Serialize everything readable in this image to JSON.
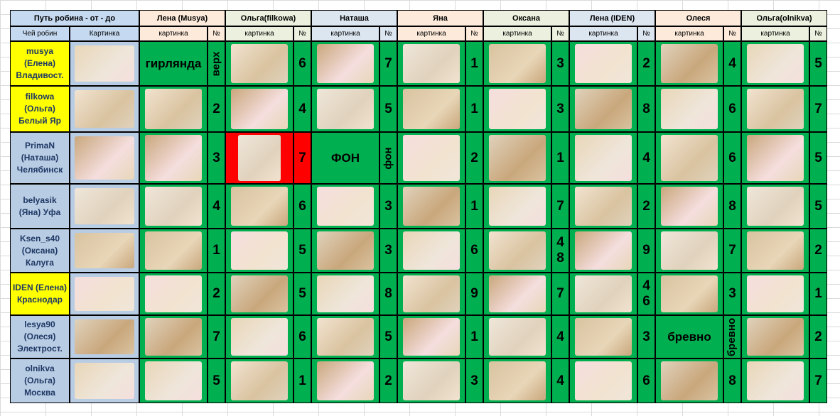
{
  "header": {
    "title": "Путь робина - от - до",
    "owner": "Чей робин",
    "picture": "Картинка"
  },
  "groups": [
    {
      "name": "Лена (Musya)",
      "picture": "картинка",
      "no": "№",
      "color": "#fdeada"
    },
    {
      "name": "Ольга(filkowa)",
      "picture": "картинка",
      "no": "№",
      "color": "#ebf1de"
    },
    {
      "name": "Наташа",
      "picture": "картинка",
      "no": "№",
      "color": "#dce6f1"
    },
    {
      "name": "Яна",
      "picture": "картинка",
      "no": "№",
      "color": "#fdeada"
    },
    {
      "name": "Оксана",
      "picture": "картинка",
      "no": "№",
      "color": "#ebf1de"
    },
    {
      "name": "Лена (IDEN)",
      "picture": "картинка",
      "no": "№",
      "color": "#dce6f1"
    },
    {
      "name": "Олеся",
      "picture": "картинка",
      "no": "№",
      "color": "#fdeada"
    },
    {
      "name": "Ольга(olnikva)",
      "picture": "картинка",
      "no": "№",
      "color": "#ebf1de"
    }
  ],
  "rows": [
    {
      "name": [
        "musya",
        "(Елена)",
        "Владивост."
      ],
      "highlight": true,
      "cells": [
        {
          "text": "гирлянда",
          "no": "верх"
        },
        {
          "no": 6
        },
        {
          "no": 7
        },
        {
          "no": 1
        },
        {
          "no": 3
        },
        {
          "no": 2
        },
        {
          "no": 4
        },
        {
          "no": 5
        }
      ]
    },
    {
      "name": [
        "filkowa",
        "(Ольга)",
        "Белый Яр"
      ],
      "highlight": true,
      "cells": [
        {
          "no": 2
        },
        {
          "no": 4
        },
        {
          "no": 5
        },
        {
          "no": 1
        },
        {
          "no": 3
        },
        {
          "no": 8
        },
        {
          "no": 6
        },
        {
          "no": 7
        }
      ]
    },
    {
      "name": [
        "PrimaN",
        "(Наташа)",
        "Челябинск"
      ],
      "highlight": false,
      "cells": [
        {
          "no": 3
        },
        {
          "no": 7,
          "red": true
        },
        {
          "text": "ФОН",
          "no": "фон"
        },
        {
          "no": 2
        },
        {
          "no": 1
        },
        {
          "no": 4
        },
        {
          "no": 6
        },
        {
          "no": 5
        }
      ]
    },
    {
      "name": [
        "belyasik",
        "(Яна) Уфа"
      ],
      "highlight": false,
      "cells": [
        {
          "no": 4
        },
        {
          "no": 6
        },
        {
          "no": 3
        },
        {
          "no": 1
        },
        {
          "no": 7
        },
        {
          "no": 2
        },
        {
          "no": 8
        },
        {
          "no": 5
        }
      ]
    },
    {
      "name": [
        "Ksen_s40",
        "(Оксана)",
        "Калуга"
      ],
      "highlight": false,
      "cells": [
        {
          "no": 1
        },
        {
          "no": 5
        },
        {
          "no": 3
        },
        {
          "no": 6
        },
        {
          "no": [
            4,
            8
          ]
        },
        {
          "no": 9
        },
        {
          "no": 7
        },
        {
          "no": 2
        }
      ]
    },
    {
      "name": [
        "IDEN (Елена)",
        "Краснодар"
      ],
      "highlight": true,
      "cells": [
        {
          "no": 2
        },
        {
          "no": 5
        },
        {
          "no": 8
        },
        {
          "no": 9
        },
        {
          "no": 7
        },
        {
          "no": [
            4,
            6
          ]
        },
        {
          "no": 3
        },
        {
          "no": 1
        }
      ]
    },
    {
      "name": [
        "lesya90",
        "(Олеся)",
        "Электрост."
      ],
      "highlight": false,
      "cells": [
        {
          "no": 7
        },
        {
          "no": 6
        },
        {
          "no": 5
        },
        {
          "no": 1
        },
        {
          "no": 4
        },
        {
          "no": 3
        },
        {
          "text": "бревно",
          "no": "бревно"
        },
        {
          "no": 2
        }
      ]
    },
    {
      "name": [
        "olnikva",
        "(Ольга)",
        "Москва"
      ],
      "highlight": false,
      "cells": [
        {
          "no": 5
        },
        {
          "no": 1
        },
        {
          "no": 2
        },
        {
          "no": 3
        },
        {
          "no": 4
        },
        {
          "no": 6
        },
        {
          "no": 8
        },
        {
          "no": 7
        }
      ]
    }
  ]
}
